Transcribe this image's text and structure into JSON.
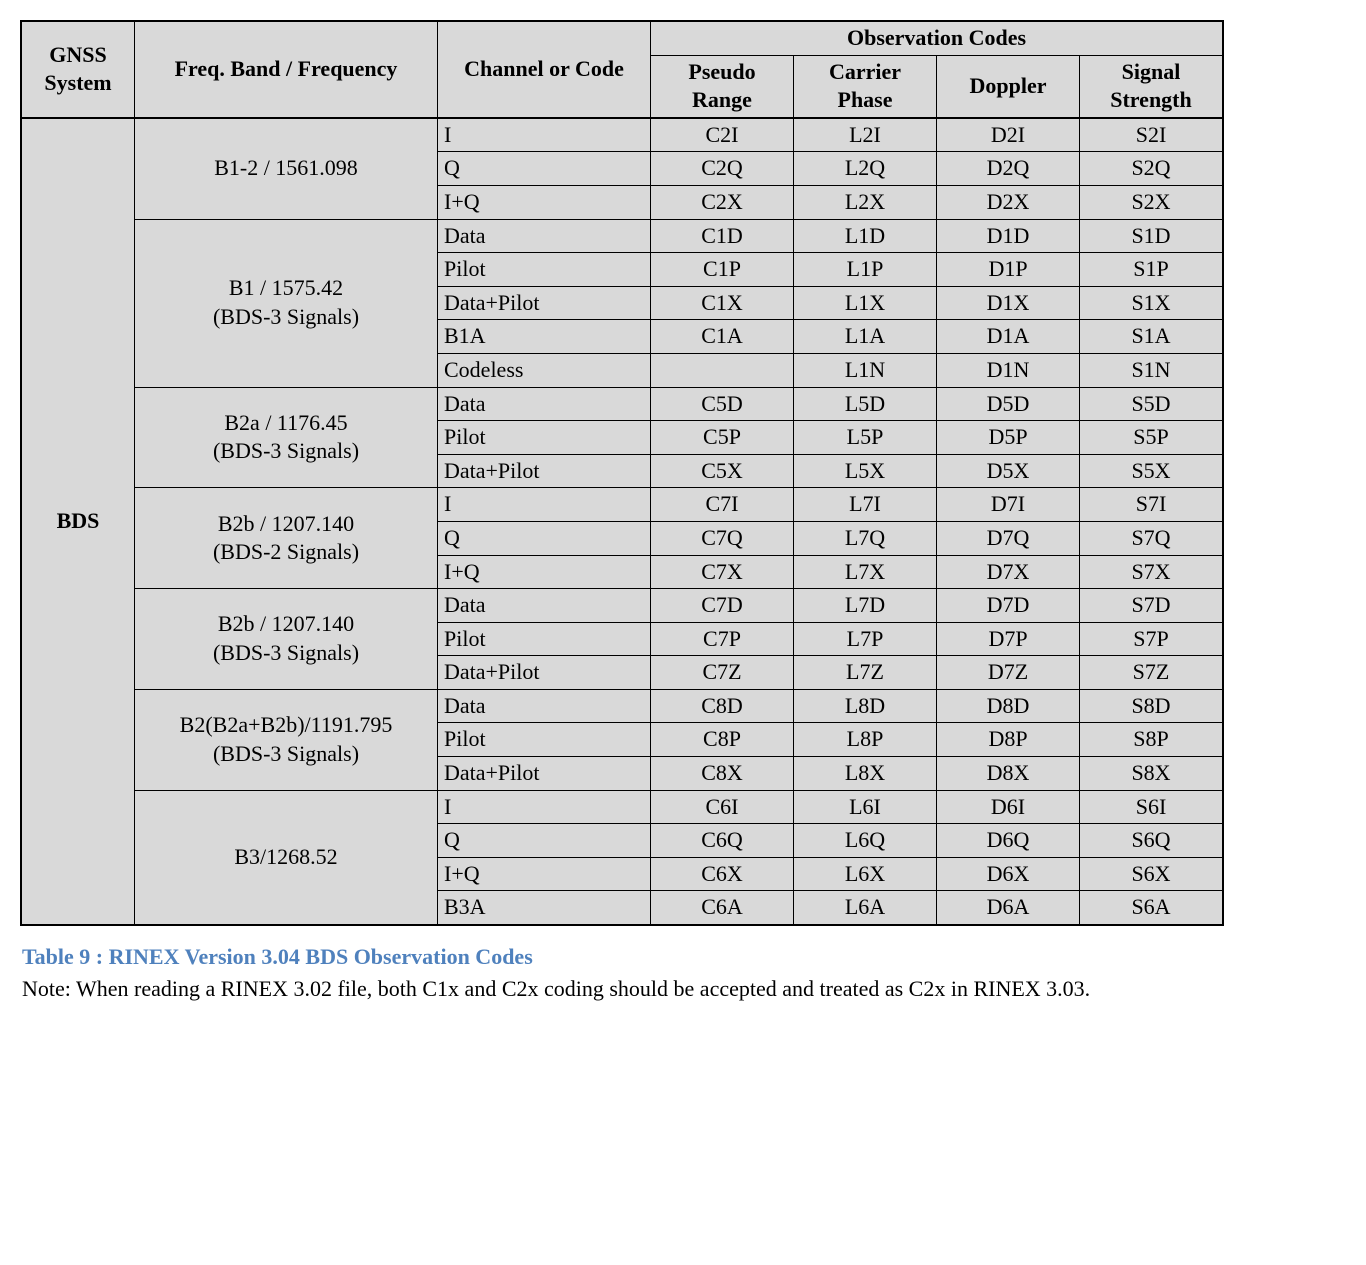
{
  "table": {
    "background_color": "#d9d9d9",
    "border_color": "#000000",
    "font_family": "Times New Roman",
    "font_size_pt": 16,
    "header": {
      "gnss": "GNSS System",
      "freq": "Freq. Band / Frequency",
      "channel": "Channel or Code",
      "obs_group": "Observation Codes",
      "obs_cols": [
        "Pseudo Range",
        "Carrier Phase",
        "Doppler",
        "Signal Strength"
      ]
    },
    "gnss_label": "BDS",
    "bands": [
      {
        "freq_lines": [
          "B1-2 / 1561.098"
        ],
        "rows": [
          {
            "chan": "I",
            "obs": [
              "C2I",
              "L2I",
              "D2I",
              "S2I"
            ]
          },
          {
            "chan": "Q",
            "obs": [
              "C2Q",
              "L2Q",
              "D2Q",
              "S2Q"
            ]
          },
          {
            "chan": "I+Q",
            "obs": [
              "C2X",
              "L2X",
              "D2X",
              "S2X"
            ]
          }
        ]
      },
      {
        "freq_lines": [
          "B1 / 1575.42",
          "(BDS-3 Signals)"
        ],
        "rows": [
          {
            "chan": "Data",
            "obs": [
              "C1D",
              "L1D",
              "D1D",
              "S1D"
            ]
          },
          {
            "chan": "Pilot",
            "obs": [
              "C1P",
              "L1P",
              "D1P",
              "S1P"
            ]
          },
          {
            "chan": "Data+Pilot",
            "obs": [
              "C1X",
              "L1X",
              "D1X",
              "S1X"
            ]
          },
          {
            "chan": "B1A",
            "obs": [
              "C1A",
              "L1A",
              "D1A",
              "S1A"
            ]
          },
          {
            "chan": "Codeless",
            "obs": [
              "",
              "L1N",
              "D1N",
              "S1N"
            ]
          }
        ]
      },
      {
        "freq_lines": [
          "B2a / 1176.45",
          "(BDS-3 Signals)"
        ],
        "rows": [
          {
            "chan": "Data",
            "obs": [
              "C5D",
              "L5D",
              "D5D",
              "S5D"
            ]
          },
          {
            "chan": "Pilot",
            "obs": [
              "C5P",
              "L5P",
              "D5P",
              "S5P"
            ]
          },
          {
            "chan": "Data+Pilot",
            "obs": [
              "C5X",
              "L5X",
              "D5X",
              "S5X"
            ]
          }
        ]
      },
      {
        "freq_lines": [
          "B2b / 1207.140",
          "(BDS-2 Signals)"
        ],
        "rows": [
          {
            "chan": "I",
            "obs": [
              "C7I",
              "L7I",
              "D7I",
              "S7I"
            ]
          },
          {
            "chan": "Q",
            "obs": [
              "C7Q",
              "L7Q",
              "D7Q",
              "S7Q"
            ]
          },
          {
            "chan": "I+Q",
            "obs": [
              "C7X",
              "L7X",
              "D7X",
              "S7X"
            ]
          }
        ]
      },
      {
        "freq_lines": [
          "B2b / 1207.140",
          "(BDS-3 Signals)"
        ],
        "rows": [
          {
            "chan": "Data",
            "obs": [
              "C7D",
              "L7D",
              "D7D",
              "S7D"
            ]
          },
          {
            "chan": "Pilot",
            "obs": [
              "C7P",
              "L7P",
              "D7P",
              "S7P"
            ]
          },
          {
            "chan": "Data+Pilot",
            "obs": [
              "C7Z",
              "L7Z",
              "D7Z",
              "S7Z"
            ]
          }
        ]
      },
      {
        "freq_lines": [
          "B2(B2a+B2b)/1191.795",
          "(BDS-3 Signals)"
        ],
        "rows": [
          {
            "chan": "Data",
            "obs": [
              "C8D",
              "L8D",
              "D8D",
              "S8D"
            ]
          },
          {
            "chan": "Pilot",
            "obs": [
              "C8P",
              "L8P",
              "D8P",
              "S8P"
            ]
          },
          {
            "chan": "Data+Pilot",
            "obs": [
              "C8X",
              "L8X",
              "D8X",
              "S8X"
            ]
          }
        ]
      },
      {
        "freq_lines": [
          "B3/1268.52"
        ],
        "rows": [
          {
            "chan": "I",
            "obs": [
              "C6I",
              "L6I",
              "D6I",
              "S6I"
            ]
          },
          {
            "chan": "Q",
            "obs": [
              "C6Q",
              "L6Q",
              "D6Q",
              "S6Q"
            ]
          },
          {
            "chan": "I+Q",
            "obs": [
              "C6X",
              "L6X",
              "D6X",
              "S6X"
            ]
          },
          {
            "chan": "B3A",
            "obs": [
              "C6A",
              "L6A",
              "D6A",
              "S6A"
            ]
          }
        ]
      }
    ]
  },
  "caption": "Table 9 : RINEX Version 3.04 BDS Observation Codes",
  "caption_color": "#4f81bd",
  "note": "Note: When reading a RINEX 3.02 file, both C1x and C2x coding should be accepted and treated as C2x in RINEX 3.03."
}
